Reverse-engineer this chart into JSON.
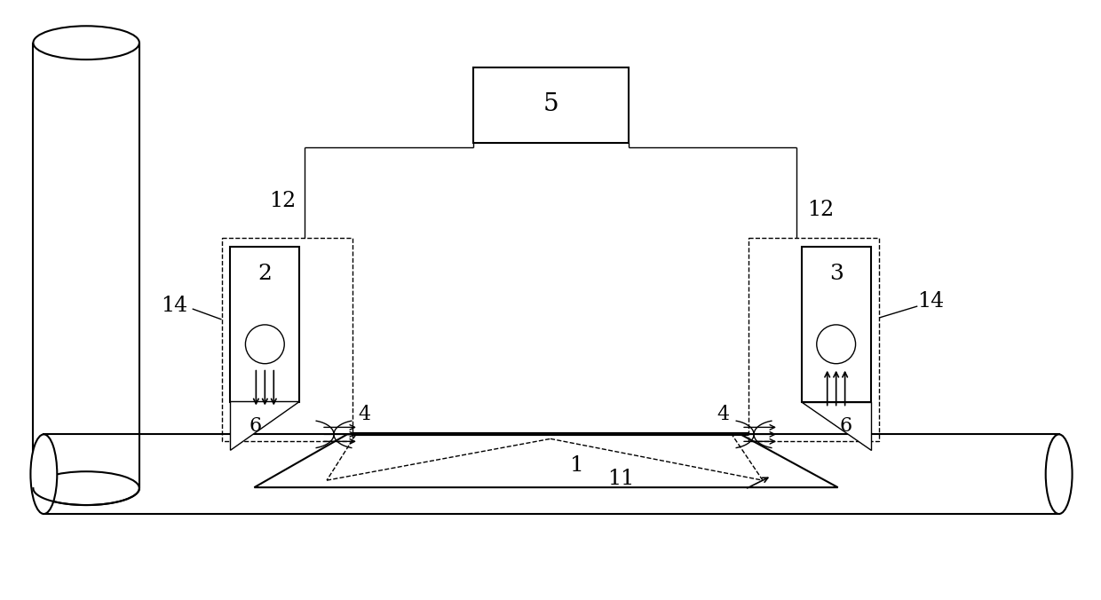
{
  "bg_color": "#ffffff",
  "fig_width": 12.4,
  "fig_height": 6.76,
  "lw_thin": 1.0,
  "lw_med": 1.5,
  "lw_thick": 2.5
}
